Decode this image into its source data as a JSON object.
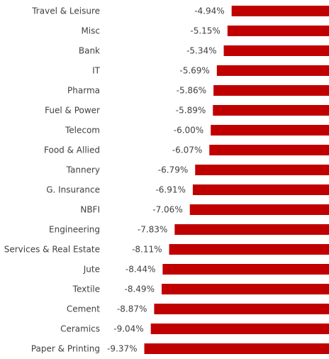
{
  "chart_data": {
    "type": "bar",
    "orientation": "horizontal",
    "title": "",
    "xlabel": "",
    "ylabel": "",
    "xlim": [
      -9.5,
      0
    ],
    "grid": false,
    "legend": "none",
    "value_format": "percent_2dp",
    "bar_color": "#c00000",
    "categories": [
      "Travel & Leisure",
      "Misc",
      "Bank",
      "IT",
      "Pharma",
      "Fuel & Power",
      "Telecom",
      "Food & Allied",
      "Tannery",
      "G. Insurance",
      "NBFI",
      "Engineering",
      "Services & Real Estate",
      "Jute",
      "Textile",
      "Cement",
      "Ceramics",
      "Paper & Printing"
    ],
    "values": [
      -4.94,
      -5.15,
      -5.34,
      -5.69,
      -5.86,
      -5.89,
      -6.0,
      -6.07,
      -6.79,
      -6.91,
      -7.06,
      -7.83,
      -8.11,
      -8.44,
      -8.49,
      -8.87,
      -9.04,
      -9.37
    ],
    "data_labels": [
      "-4.94%",
      "-5.15%",
      "-5.34%",
      "-5.69%",
      "-5.86%",
      "-5.89%",
      "-6.00%",
      "-6.07%",
      "-6.79%",
      "-6.91%",
      "-7.06%",
      "-7.83%",
      "-8.11%",
      "-8.44%",
      "-8.49%",
      "-8.87%",
      "-9.04%",
      "-9.37%"
    ]
  }
}
